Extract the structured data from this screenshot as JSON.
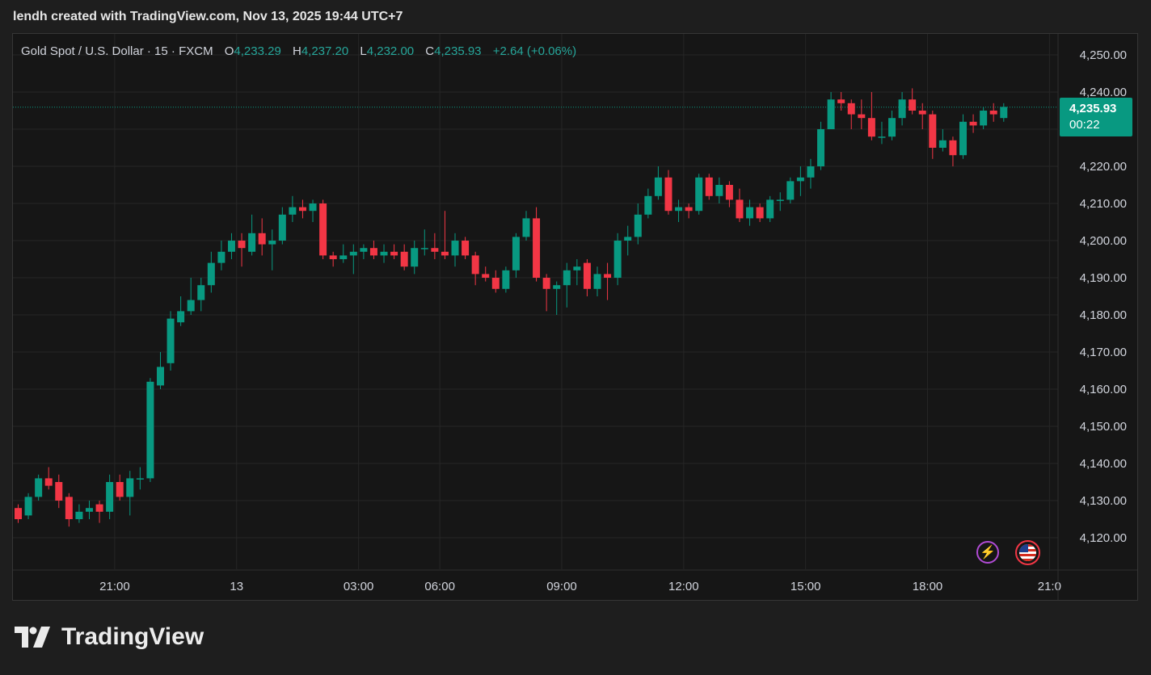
{
  "caption": "lendh created with TradingView.com, Nov 13, 2025 19:44 UTC+7",
  "legend": {
    "symbol": "Gold Spot / U.S. Dollar · 15 · FXCM",
    "open_label": "O",
    "open": "4,233.29",
    "high_label": "H",
    "high": "4,237.20",
    "low_label": "L",
    "low": "4,232.00",
    "close_label": "C",
    "close": "4,235.93",
    "change": "+2.64 (+0.06%)"
  },
  "price_tag": {
    "price": "4,235.93",
    "countdown": "00:22"
  },
  "brand": {
    "name": "TradingView"
  },
  "icons": {
    "alert": "lightning-icon",
    "calendar": "us-flag-icon"
  },
  "colors": {
    "up": "#089981",
    "down": "#f23645",
    "grid": "#262626",
    "text": "#d1d4dc"
  },
  "chart_data": {
    "type": "candlestick",
    "title": "Gold Spot / U.S. Dollar · 15 · FXCM",
    "ylim": [
      4113,
      4253
    ],
    "yticks": [
      4250,
      4240,
      4230,
      4220,
      4210,
      4200,
      4190,
      4180,
      4170,
      4160,
      4150,
      4140,
      4130,
      4120
    ],
    "ytick_labels": [
      "4,250.00",
      "4,240.00",
      "",
      "4,220.00",
      "4,210.00",
      "4,200.00",
      "4,190.00",
      "4,180.00",
      "4,170.00",
      "4,160.00",
      "4,150.00",
      "4,140.00",
      "4,130.00",
      "4,120.00"
    ],
    "xticks": [
      "21:00",
      "13",
      "03:00",
      "06:00",
      "09:00",
      "12:00",
      "15:00",
      "18:00",
      "21:0"
    ],
    "xtick_index": [
      9.5,
      21.5,
      33.5,
      41.5,
      53.5,
      65.5,
      77.5,
      89.5,
      101.5
    ],
    "last_price": 4235.93,
    "grid": true,
    "candles": [
      [
        4128,
        4125,
        4129,
        4124
      ],
      [
        4126,
        4131,
        4132,
        4125
      ],
      [
        4131,
        4136,
        4137,
        4130
      ],
      [
        4136,
        4134,
        4139,
        4133
      ],
      [
        4135,
        4130,
        4137,
        4128
      ],
      [
        4131,
        4125,
        4132,
        4123
      ],
      [
        4125,
        4127,
        4129,
        4124
      ],
      [
        4127,
        4128,
        4130,
        4125
      ],
      [
        4129,
        4127,
        4130,
        4124
      ],
      [
        4127,
        4135,
        4137,
        4125
      ],
      [
        4135,
        4131,
        4137,
        4130
      ],
      [
        4131,
        4136,
        4138,
        4126
      ],
      [
        4136,
        4136,
        4139,
        4133
      ],
      [
        4136,
        4162,
        4163,
        4135
      ],
      [
        4161,
        4166,
        4170,
        4160
      ],
      [
        4167,
        4179,
        4181,
        4165
      ],
      [
        4178,
        4181,
        4185,
        4177
      ],
      [
        4181,
        4184,
        4190,
        4180
      ],
      [
        4184,
        4188,
        4190,
        4181
      ],
      [
        4188,
        4194,
        4197,
        4186
      ],
      [
        4194,
        4197,
        4200,
        4192
      ],
      [
        4197,
        4200,
        4202,
        4195
      ],
      [
        4200,
        4198,
        4202,
        4193
      ],
      [
        4197,
        4202,
        4207,
        4196
      ],
      [
        4202,
        4199,
        4206,
        4196
      ],
      [
        4199,
        4200,
        4203,
        4192
      ],
      [
        4200,
        4207,
        4209,
        4199
      ],
      [
        4207,
        4209,
        4212,
        4205
      ],
      [
        4209,
        4208,
        4211,
        4206
      ],
      [
        4208,
        4210,
        4211,
        4205
      ],
      [
        4210,
        4196,
        4211,
        4195
      ],
      [
        4196,
        4195,
        4197,
        4193
      ],
      [
        4195,
        4196,
        4199,
        4194
      ],
      [
        4196,
        4197,
        4199,
        4191
      ],
      [
        4197,
        4198,
        4199,
        4195
      ],
      [
        4198,
        4196,
        4200,
        4195
      ],
      [
        4196,
        4197,
        4199,
        4194
      ],
      [
        4197,
        4196,
        4199,
        4195
      ],
      [
        4197,
        4193,
        4199,
        4192
      ],
      [
        4193,
        4198,
        4200,
        4191
      ],
      [
        4198,
        4198,
        4203,
        4196
      ],
      [
        4198,
        4197,
        4202,
        4195
      ],
      [
        4197,
        4196,
        4208,
        4195
      ],
      [
        4196,
        4200,
        4202,
        4193
      ],
      [
        4200,
        4196,
        4201,
        4195
      ],
      [
        4196,
        4191,
        4197,
        4188
      ],
      [
        4191,
        4190,
        4193,
        4189
      ],
      [
        4190,
        4187,
        4192,
        4186
      ],
      [
        4187,
        4192,
        4193,
        4186
      ],
      [
        4192,
        4201,
        4202,
        4190
      ],
      [
        4201,
        4206,
        4208,
        4200
      ],
      [
        4206,
        4190,
        4209,
        4189
      ],
      [
        4190,
        4187,
        4191,
        4181
      ],
      [
        4187,
        4188,
        4189,
        4180
      ],
      [
        4188,
        4192,
        4194,
        4182
      ],
      [
        4192,
        4193,
        4195,
        4188
      ],
      [
        4194,
        4187,
        4195,
        4185
      ],
      [
        4187,
        4191,
        4193,
        4185
      ],
      [
        4191,
        4190,
        4194,
        4184
      ],
      [
        4190,
        4200,
        4202,
        4188
      ],
      [
        4200,
        4201,
        4204,
        4196
      ],
      [
        4201,
        4207,
        4210,
        4199
      ],
      [
        4207,
        4212,
        4214,
        4206
      ],
      [
        4212,
        4217,
        4220,
        4211
      ],
      [
        4217,
        4208,
        4219,
        4207
      ],
      [
        4208,
        4209,
        4211,
        4205
      ],
      [
        4209,
        4208,
        4210,
        4206
      ],
      [
        4208,
        4217,
        4218,
        4207
      ],
      [
        4217,
        4212,
        4218,
        4211
      ],
      [
        4212,
        4215,
        4217,
        4210
      ],
      [
        4215,
        4211,
        4216,
        4209
      ],
      [
        4211,
        4206,
        4214,
        4205
      ],
      [
        4206,
        4209,
        4211,
        4204
      ],
      [
        4209,
        4206,
        4210,
        4205
      ],
      [
        4206,
        4211,
        4212,
        4205
      ],
      [
        4211,
        4211,
        4213,
        4208
      ],
      [
        4211,
        4216,
        4217,
        4210
      ],
      [
        4216,
        4217,
        4220,
        4212
      ],
      [
        4217,
        4220,
        4222,
        4214
      ],
      [
        4220,
        4230,
        4232,
        4219
      ],
      [
        4230,
        4238,
        4240,
        4230
      ],
      [
        4238,
        4237,
        4240,
        4235
      ],
      [
        4237,
        4234,
        4238,
        4230
      ],
      [
        4234,
        4233,
        4238,
        4230
      ],
      [
        4233,
        4228,
        4240,
        4227
      ],
      [
        4228,
        4228,
        4232,
        4226
      ],
      [
        4228,
        4233,
        4235,
        4227
      ],
      [
        4233,
        4238,
        4240,
        4231
      ],
      [
        4238,
        4235,
        4241,
        4234
      ],
      [
        4235,
        4234,
        4237,
        4230
      ],
      [
        4234,
        4225,
        4235,
        4222
      ],
      [
        4225,
        4227,
        4230,
        4224
      ],
      [
        4227,
        4223,
        4228,
        4220
      ],
      [
        4223,
        4232,
        4234,
        4222
      ],
      [
        4232,
        4231,
        4234,
        4229
      ],
      [
        4231,
        4235,
        4236,
        4230
      ],
      [
        4235,
        4234,
        4237,
        4232
      ],
      [
        4233,
        4236,
        4237,
        4232
      ]
    ]
  }
}
